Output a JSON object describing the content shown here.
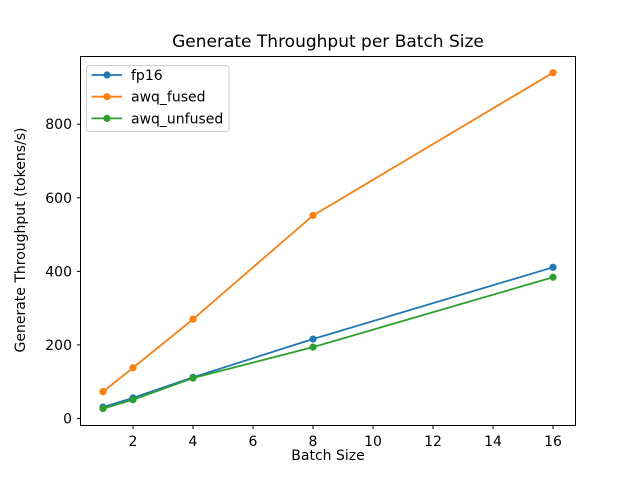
{
  "figure": {
    "background": "#ffffff"
  },
  "chart_data": {
    "type": "line",
    "title": "Generate Throughput per Batch Size",
    "xlabel": "Batch Size",
    "ylabel": "Generate Throughput (tokens/s)",
    "x": [
      1,
      2,
      4,
      8,
      16
    ],
    "series": [
      {
        "name": "fp16",
        "color": "#1f77b4",
        "values": [
          31,
          56,
          112,
          216,
          411
        ]
      },
      {
        "name": "awq_fused",
        "color": "#ff7f0e",
        "values": [
          73,
          138,
          270,
          552,
          940
        ]
      },
      {
        "name": "awq_unfused",
        "color": "#2ca02c",
        "values": [
          27,
          51,
          110,
          194,
          384
        ]
      }
    ],
    "xticks": [
      2,
      4,
      6,
      8,
      10,
      12,
      14,
      16
    ],
    "yticks": [
      0,
      200,
      400,
      600,
      800
    ],
    "xlim": [
      0.25,
      16.75
    ],
    "ylim": [
      -19,
      984
    ],
    "grid": false,
    "legend_position": "upper left",
    "marker": "circle",
    "axis_color": "#000000",
    "legend_border_color": "#cccccc",
    "legend_background": "#ffffff"
  }
}
